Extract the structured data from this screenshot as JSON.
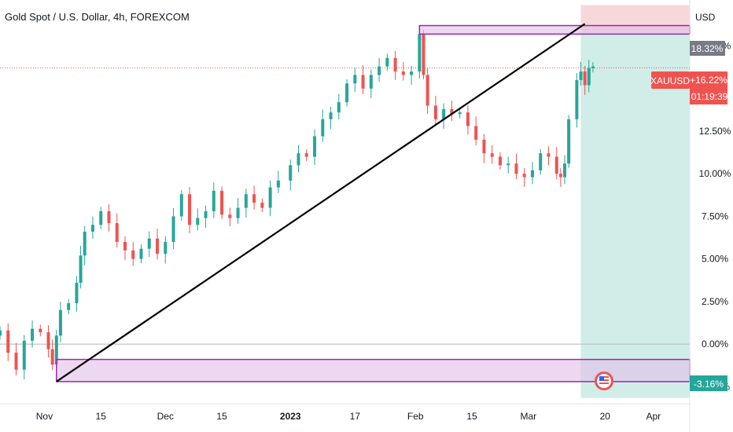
{
  "header": {
    "symbol_title": "Gold Spot / U.S. Dollar, 4h, FOREXCOM",
    "currency": "USD"
  },
  "price_tags": {
    "top_box": "18.32%",
    "symbol": "XAUUSD",
    "change": "+16.22%",
    "countdown": "01:19:39",
    "bottom_box": "-3.16%"
  },
  "colors": {
    "up": "#26a69a",
    "down": "#ef5350",
    "profit_zone": "#d1ede8",
    "loss_zone": "#f8d7da",
    "rectangle_border": "#9c27b0",
    "rectangle_fill": "#e1bee7",
    "trendline": "#000000",
    "price_line": "#ef5350",
    "badge_text": "#ffffff"
  },
  "chart_data": {
    "type": "candlestick",
    "title": "Gold Spot / U.S. Dollar, 4h, FOREXCOM",
    "y_unit": "%",
    "y_ticks": [
      "17.50%",
      "12.50%",
      "10.00%",
      "7.50%",
      "5.00%",
      "2.50%",
      "0.00%",
      "-2.50%"
    ],
    "y_tick_values": [
      17.5,
      12.5,
      10.0,
      7.5,
      5.0,
      2.5,
      0.0,
      -2.5
    ],
    "ylim": [
      -3.5,
      20.2
    ],
    "x_ticks": [
      "Nov",
      "15",
      "Dec",
      "15",
      "2023",
      "17",
      "Feb",
      "15",
      "Mar",
      "20",
      "Apr"
    ],
    "x_tick_dates": [
      "2022-11-01",
      "2022-11-15",
      "2022-12-01",
      "2022-12-15",
      "2023-01-01",
      "2023-01-17",
      "2023-02-01",
      "2023-02-15",
      "2023-03-01",
      "2023-03-20",
      "2023-04-01"
    ],
    "xlim": [
      "2022-10-21",
      "2023-04-10"
    ],
    "close_series": [
      {
        "date": "2022-10-21",
        "value": 0.8
      },
      {
        "date": "2022-10-23",
        "value": -0.5
      },
      {
        "date": "2022-10-25",
        "value": -1.5
      },
      {
        "date": "2022-10-27",
        "value": 0.2
      },
      {
        "date": "2022-10-29",
        "value": 0.9
      },
      {
        "date": "2022-10-31",
        "value": 0.7
      },
      {
        "date": "2022-11-02",
        "value": -0.3
      },
      {
        "date": "2022-11-03",
        "value": -1.2
      },
      {
        "date": "2022-11-04",
        "value": 0.5
      },
      {
        "date": "2022-11-05",
        "value": 2.0
      },
      {
        "date": "2022-11-07",
        "value": 2.4
      },
      {
        "date": "2022-11-09",
        "value": 3.6
      },
      {
        "date": "2022-11-10",
        "value": 5.2
      },
      {
        "date": "2022-11-11",
        "value": 6.6
      },
      {
        "date": "2022-11-13",
        "value": 7.0
      },
      {
        "date": "2022-11-15",
        "value": 7.8
      },
      {
        "date": "2022-11-17",
        "value": 7.1
      },
      {
        "date": "2022-11-19",
        "value": 6.0
      },
      {
        "date": "2022-11-21",
        "value": 5.5
      },
      {
        "date": "2022-11-23",
        "value": 5.0
      },
      {
        "date": "2022-11-25",
        "value": 5.6
      },
      {
        "date": "2022-11-27",
        "value": 6.2
      },
      {
        "date": "2022-11-29",
        "value": 5.3
      },
      {
        "date": "2022-12-01",
        "value": 6.0
      },
      {
        "date": "2022-12-03",
        "value": 7.5
      },
      {
        "date": "2022-12-05",
        "value": 8.8
      },
      {
        "date": "2022-12-07",
        "value": 7.0
      },
      {
        "date": "2022-12-09",
        "value": 7.4
      },
      {
        "date": "2022-12-11",
        "value": 7.8
      },
      {
        "date": "2022-12-13",
        "value": 9.0
      },
      {
        "date": "2022-12-15",
        "value": 7.6
      },
      {
        "date": "2022-12-17",
        "value": 7.4
      },
      {
        "date": "2022-12-19",
        "value": 8.0
      },
      {
        "date": "2022-12-21",
        "value": 8.8
      },
      {
        "date": "2022-12-23",
        "value": 8.3
      },
      {
        "date": "2022-12-25",
        "value": 8.0
      },
      {
        "date": "2022-12-27",
        "value": 9.2
      },
      {
        "date": "2022-12-29",
        "value": 9.6
      },
      {
        "date": "2023-01-01",
        "value": 10.5
      },
      {
        "date": "2023-01-03",
        "value": 11.2
      },
      {
        "date": "2023-01-05",
        "value": 11.0
      },
      {
        "date": "2023-01-07",
        "value": 12.2
      },
      {
        "date": "2023-01-09",
        "value": 13.2
      },
      {
        "date": "2023-01-11",
        "value": 13.6
      },
      {
        "date": "2023-01-13",
        "value": 14.2
      },
      {
        "date": "2023-01-15",
        "value": 15.3
      },
      {
        "date": "2023-01-17",
        "value": 15.8
      },
      {
        "date": "2023-01-19",
        "value": 15.0
      },
      {
        "date": "2023-01-21",
        "value": 15.8
      },
      {
        "date": "2023-01-23",
        "value": 16.3
      },
      {
        "date": "2023-01-25",
        "value": 16.8
      },
      {
        "date": "2023-01-27",
        "value": 16.0
      },
      {
        "date": "2023-01-29",
        "value": 15.8
      },
      {
        "date": "2023-01-31",
        "value": 16.0
      },
      {
        "date": "2023-02-02",
        "value": 18.2
      },
      {
        "date": "2023-02-03",
        "value": 15.8
      },
      {
        "date": "2023-02-04",
        "value": 14.0
      },
      {
        "date": "2023-02-06",
        "value": 13.2
      },
      {
        "date": "2023-02-08",
        "value": 13.8
      },
      {
        "date": "2023-02-10",
        "value": 13.5
      },
      {
        "date": "2023-02-12",
        "value": 13.6
      },
      {
        "date": "2023-02-14",
        "value": 12.8
      },
      {
        "date": "2023-02-16",
        "value": 12.0
      },
      {
        "date": "2023-02-18",
        "value": 11.2
      },
      {
        "date": "2023-02-20",
        "value": 11.0
      },
      {
        "date": "2023-02-22",
        "value": 10.5
      },
      {
        "date": "2023-02-24",
        "value": 10.6
      },
      {
        "date": "2023-02-26",
        "value": 10.0
      },
      {
        "date": "2023-02-28",
        "value": 9.8
      },
      {
        "date": "2023-03-02",
        "value": 10.2
      },
      {
        "date": "2023-03-04",
        "value": 11.2
      },
      {
        "date": "2023-03-06",
        "value": 11.0
      },
      {
        "date": "2023-03-08",
        "value": 10.0
      },
      {
        "date": "2023-03-09",
        "value": 9.8
      },
      {
        "date": "2023-03-10",
        "value": 10.6
      },
      {
        "date": "2023-03-11",
        "value": 13.2
      },
      {
        "date": "2023-03-13",
        "value": 15.5
      },
      {
        "date": "2023-03-14",
        "value": 16.0
      },
      {
        "date": "2023-03-15",
        "value": 15.2
      },
      {
        "date": "2023-03-16",
        "value": 16.2
      },
      {
        "date": "2023-03-17",
        "value": 16.3
      }
    ],
    "price_line": {
      "value": 16.22
    },
    "trendline": {
      "from": {
        "date": "2022-11-04",
        "value": -2.2
      },
      "to": {
        "date": "2023-03-15",
        "value": 18.8
      }
    },
    "rectangles": [
      {
        "name": "top-zone",
        "x_start": "2023-02-02",
        "x_end": "2023-04-10",
        "y_low": 18.2,
        "y_high": 18.7
      },
      {
        "name": "bottom-zone",
        "x_start": "2022-11-04",
        "x_end": "2023-04-10",
        "y_low": -2.2,
        "y_high": -0.9
      }
    ],
    "position": {
      "x_start": "2023-03-14",
      "x_end": "2023-04-10",
      "entry": 18.32,
      "target": -3.16,
      "stop": 19.9
    },
    "baseline": 0.0,
    "grid": false
  }
}
